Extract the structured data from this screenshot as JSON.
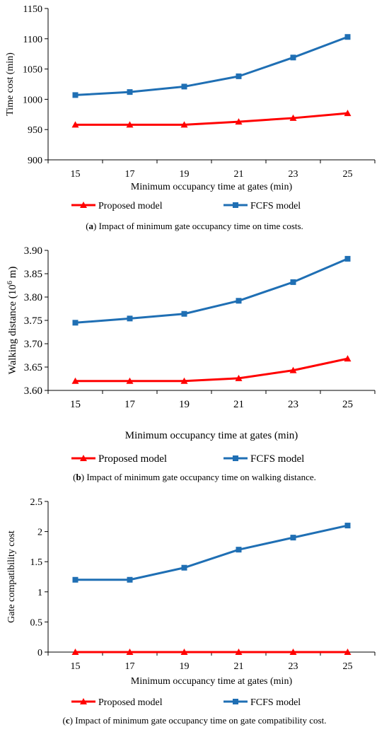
{
  "chart_data": [
    {
      "type": "line",
      "x": [
        15,
        17,
        19,
        21,
        23,
        25
      ],
      "xlabel": "Minimum occupancy time at gates (min)",
      "ylabel": "Time cost (min)",
      "ylim": [
        900,
        1150
      ],
      "yticks": [
        "900",
        "950",
        "1000",
        "1050",
        "1100",
        "1150"
      ],
      "ytick_values": [
        900,
        950,
        1000,
        1050,
        1100,
        1150
      ],
      "grid": false,
      "legend_position": "bottom-center",
      "series": [
        {
          "name": "Proposed model",
          "marker": "triangle",
          "color": "#ff0000",
          "values": [
            958,
            958,
            958,
            963,
            969,
            977
          ]
        },
        {
          "name": "FCFS model",
          "marker": "square",
          "color": "#1f6fb4",
          "values": [
            1007,
            1012,
            1021,
            1038,
            1069,
            1103
          ]
        }
      ],
      "caption_label": "a",
      "caption_text": "Impact of minimum gate occupancy time on time costs."
    },
    {
      "type": "line",
      "x": [
        15,
        17,
        19,
        21,
        23,
        25
      ],
      "xlabel": "Minimum occupancy time at gates (min)",
      "ylabel": "Walking distance (10",
      "ylabel_sup": "6",
      "ylabel_end": " m)",
      "ylim": [
        3.6,
        3.9
      ],
      "yticks": [
        "3.60",
        "3.65",
        "3.70",
        "3.75",
        "3.80",
        "3.85",
        "3.90"
      ],
      "ytick_values": [
        3.6,
        3.65,
        3.7,
        3.75,
        3.8,
        3.85,
        3.9
      ],
      "grid": false,
      "legend_position": "bottom-center",
      "series": [
        {
          "name": "Proposed model",
          "marker": "triangle",
          "color": "#ff0000",
          "values": [
            3.62,
            3.62,
            3.62,
            3.626,
            3.643,
            3.668
          ]
        },
        {
          "name": "FCFS model",
          "marker": "square",
          "color": "#1f6fb4",
          "values": [
            3.745,
            3.754,
            3.764,
            3.792,
            3.832,
            3.882
          ]
        }
      ],
      "caption_label": "b",
      "caption_text": "Impact of minimum gate occupancy time on walking distance."
    },
    {
      "type": "line",
      "x": [
        15,
        17,
        19,
        21,
        23,
        25
      ],
      "xlabel": "Minimum occupancy time at gates (min)",
      "ylabel": "Gate compatibility cost",
      "ylim": [
        0,
        2.5
      ],
      "yticks": [
        "0",
        "0.5",
        "1",
        "1.5",
        "2",
        "2.5"
      ],
      "ytick_values": [
        0,
        0.5,
        1,
        1.5,
        2,
        2.5
      ],
      "grid": false,
      "legend_position": "bottom-center",
      "series": [
        {
          "name": "Proposed model",
          "marker": "triangle",
          "color": "#ff0000",
          "values": [
            0,
            0,
            0,
            0,
            0,
            0
          ]
        },
        {
          "name": "FCFS model",
          "marker": "square",
          "color": "#1f6fb4",
          "values": [
            1.2,
            1.2,
            1.4,
            1.7,
            1.9,
            2.1
          ]
        }
      ],
      "caption_label": "c",
      "caption_text": "Impact of minimum gate occupancy time on gate compatibility cost."
    }
  ]
}
